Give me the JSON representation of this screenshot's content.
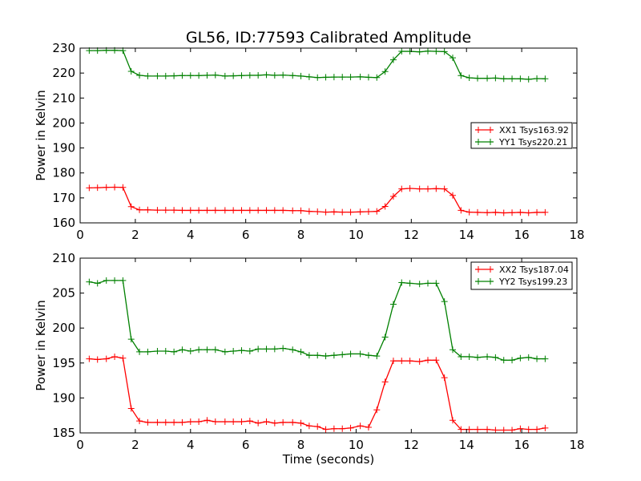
{
  "title": "GL56, ID:77593 Calibrated Amplitude",
  "xlabel": "Time (seconds)",
  "colors": {
    "red": "#ff0000",
    "green": "#008000"
  },
  "chart_data": [
    {
      "type": "line",
      "ylabel": "Power in Kelvin",
      "xlim": [
        0,
        18
      ],
      "ylim": [
        160,
        230
      ],
      "xticks": [
        0,
        2,
        4,
        6,
        8,
        10,
        12,
        14,
        16,
        18
      ],
      "yticks": [
        160,
        170,
        180,
        190,
        200,
        210,
        220,
        230
      ],
      "grid": false,
      "legend_position": "center-right",
      "x": [
        0.33,
        0.63,
        0.95,
        1.25,
        1.55,
        1.85,
        2.15,
        2.45,
        2.8,
        3.1,
        3.4,
        3.7,
        4.0,
        4.3,
        4.6,
        4.9,
        5.25,
        5.55,
        5.85,
        6.15,
        6.45,
        6.75,
        7.05,
        7.35,
        7.7,
        8.0,
        8.3,
        8.6,
        8.9,
        9.2,
        9.5,
        9.8,
        10.15,
        10.45,
        10.75,
        11.05,
        11.35,
        11.65,
        11.95,
        12.3,
        12.6,
        12.9,
        13.2,
        13.5,
        13.8,
        14.1,
        14.4,
        14.75,
        15.05,
        15.35,
        15.65,
        15.95,
        16.25,
        16.55,
        16.85
      ],
      "series": [
        {
          "name": "XX1 Tsys163.92",
          "color": "#ff0000",
          "values": [
            174.0,
            174.1,
            174.2,
            174.3,
            174.2,
            166.5,
            165.2,
            165.2,
            165.1,
            165.1,
            165.1,
            165.0,
            165.0,
            165.0,
            165.0,
            165.0,
            165.0,
            165.0,
            165.0,
            165.0,
            165.0,
            165.0,
            165.0,
            165.0,
            164.9,
            164.9,
            164.6,
            164.5,
            164.3,
            164.4,
            164.3,
            164.3,
            164.4,
            164.5,
            164.6,
            166.6,
            170.6,
            173.6,
            173.8,
            173.6,
            173.6,
            173.7,
            173.6,
            171.0,
            165.0,
            164.3,
            164.2,
            164.1,
            164.2,
            164.0,
            164.1,
            164.2,
            164.0,
            164.2,
            164.2
          ]
        },
        {
          "name": "YY1 Tsys220.21",
          "color": "#008000",
          "values": [
            229.0,
            229.0,
            229.1,
            229.1,
            229.0,
            220.7,
            219.1,
            218.8,
            218.8,
            218.8,
            218.9,
            219.0,
            219.0,
            219.0,
            219.1,
            219.2,
            218.8,
            218.9,
            219.0,
            219.1,
            219.1,
            219.3,
            219.1,
            219.2,
            219.0,
            218.8,
            218.5,
            218.2,
            218.3,
            218.4,
            218.4,
            218.4,
            218.5,
            218.3,
            218.2,
            220.6,
            225.3,
            228.7,
            228.7,
            228.5,
            228.8,
            228.7,
            228.6,
            226.1,
            219.0,
            218.1,
            217.9,
            217.9,
            218.0,
            217.7,
            217.7,
            217.7,
            217.5,
            217.8,
            217.7
          ]
        }
      ]
    },
    {
      "type": "line",
      "ylabel": "Power in Kelvin",
      "xlabel": "Time (seconds)",
      "xlim": [
        0,
        18
      ],
      "ylim": [
        185,
        210
      ],
      "xticks": [
        0,
        2,
        4,
        6,
        8,
        10,
        12,
        14,
        16,
        18
      ],
      "yticks": [
        185,
        190,
        195,
        200,
        205,
        210
      ],
      "grid": false,
      "legend_position": "top-right",
      "x": [
        0.33,
        0.63,
        0.95,
        1.25,
        1.55,
        1.85,
        2.15,
        2.45,
        2.8,
        3.1,
        3.4,
        3.7,
        4.0,
        4.3,
        4.6,
        4.9,
        5.25,
        5.55,
        5.85,
        6.15,
        6.45,
        6.75,
        7.05,
        7.35,
        7.7,
        8.0,
        8.3,
        8.6,
        8.9,
        9.2,
        9.5,
        9.8,
        10.15,
        10.45,
        10.75,
        11.05,
        11.35,
        11.65,
        11.95,
        12.3,
        12.6,
        12.9,
        13.2,
        13.5,
        13.8,
        14.1,
        14.4,
        14.75,
        15.05,
        15.35,
        15.65,
        15.95,
        16.25,
        16.55,
        16.85
      ],
      "series": [
        {
          "name": "XX2 Tsys187.04",
          "color": "#ff0000",
          "values": [
            195.6,
            195.5,
            195.6,
            195.9,
            195.7,
            188.5,
            186.7,
            186.5,
            186.5,
            186.5,
            186.5,
            186.5,
            186.6,
            186.6,
            186.8,
            186.6,
            186.6,
            186.6,
            186.6,
            186.7,
            186.4,
            186.6,
            186.4,
            186.5,
            186.5,
            186.4,
            186.0,
            185.9,
            185.5,
            185.6,
            185.6,
            185.7,
            186.0,
            185.8,
            188.3,
            192.3,
            195.3,
            195.3,
            195.3,
            195.2,
            195.4,
            195.4,
            192.9,
            186.8,
            185.5,
            185.5,
            185.5,
            185.5,
            185.4,
            185.4,
            185.4,
            185.6,
            185.5,
            185.5,
            185.7
          ]
        },
        {
          "name": "YY2 Tsys199.23",
          "color": "#008000",
          "values": [
            206.6,
            206.4,
            206.8,
            206.8,
            206.8,
            198.4,
            196.6,
            196.6,
            196.7,
            196.7,
            196.6,
            196.9,
            196.7,
            196.9,
            196.9,
            196.9,
            196.6,
            196.7,
            196.8,
            196.7,
            197.0,
            197.0,
            197.0,
            197.1,
            196.9,
            196.6,
            196.1,
            196.1,
            196.0,
            196.1,
            196.2,
            196.3,
            196.3,
            196.1,
            196.0,
            198.7,
            203.4,
            206.5,
            206.4,
            206.3,
            206.4,
            206.4,
            203.8,
            196.9,
            195.9,
            195.9,
            195.8,
            195.9,
            195.8,
            195.4,
            195.4,
            195.7,
            195.8,
            195.6,
            195.6
          ]
        }
      ]
    }
  ]
}
